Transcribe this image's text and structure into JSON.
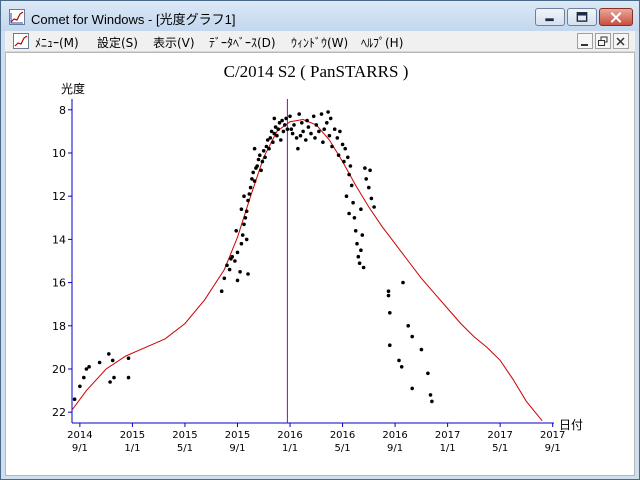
{
  "window": {
    "title": "Comet for Windows - [光度グラフ1]"
  },
  "menu": {
    "items": [
      "ﾒﾆｭｰ(M)",
      "設定(S)",
      "表示(V)",
      "ﾃﾞｰﾀﾍﾞｰｽ(D)",
      "ｳｨﾝﾄﾞｳ(W)",
      "ﾍﾙﾌﾟ(H)"
    ]
  },
  "icons": {
    "app": "comet-graph-icon",
    "minimize": "minimize-icon",
    "maximize": "maximize-icon",
    "close": "close-icon"
  },
  "colors": {
    "axis": "#0000cc",
    "prediction_curve": "#cc0000",
    "marker_line": "#9900cc",
    "points": "#000000"
  },
  "chart_data": {
    "type": "scatter",
    "title": "C/2014 S2 ( PanSTARRS )",
    "ylabel": "光度",
    "xlabel": "日付",
    "y_inverted": true,
    "ylim": [
      22.5,
      7.5
    ],
    "y_ticks": [
      8,
      10,
      12,
      14,
      16,
      18,
      20,
      22
    ],
    "x_ticks": [
      {
        "year": "2014",
        "date": "9/1"
      },
      {
        "year": "2015",
        "date": "1/1"
      },
      {
        "year": "2015",
        "date": "5/1"
      },
      {
        "year": "2015",
        "date": "9/1"
      },
      {
        "year": "2016",
        "date": "1/1"
      },
      {
        "year": "2016",
        "date": "5/1"
      },
      {
        "year": "2016",
        "date": "9/1"
      },
      {
        "year": "2017",
        "date": "1/1"
      },
      {
        "year": "2017",
        "date": "5/1"
      },
      {
        "year": "2017",
        "date": "9/1"
      }
    ],
    "x_unit": "months since 2014-09-01",
    "xlim": [
      -0.6,
      36.1
    ],
    "marker_line_x": 15.8,
    "curve": [
      [
        -0.6,
        21.9
      ],
      [
        0.5,
        21.0
      ],
      [
        2,
        20.0
      ],
      [
        3.5,
        19.4
      ],
      [
        5,
        19.0
      ],
      [
        6.5,
        18.6
      ],
      [
        8,
        17.9
      ],
      [
        9.5,
        16.8
      ],
      [
        11,
        15.4
      ],
      [
        12,
        13.9
      ],
      [
        13,
        12.0
      ],
      [
        14,
        10.2
      ],
      [
        15,
        9.0
      ],
      [
        16,
        8.55
      ],
      [
        17,
        8.45
      ],
      [
        18,
        8.7
      ],
      [
        19,
        9.4
      ],
      [
        20,
        10.4
      ],
      [
        21,
        11.5
      ],
      [
        22,
        12.5
      ],
      [
        23,
        13.4
      ],
      [
        24,
        14.2
      ],
      [
        25,
        15.0
      ],
      [
        26,
        15.8
      ],
      [
        27,
        16.5
      ],
      [
        28,
        17.2
      ],
      [
        29,
        17.9
      ],
      [
        30,
        18.5
      ],
      [
        31,
        19.0
      ],
      [
        32,
        19.6
      ],
      [
        33,
        20.5
      ],
      [
        34,
        21.5
      ],
      [
        35.2,
        22.4
      ]
    ],
    "points": [
      [
        -0.4,
        21.4
      ],
      [
        0,
        20.8
      ],
      [
        0.3,
        20.4
      ],
      [
        0.5,
        20.0
      ],
      [
        0.7,
        19.9
      ],
      [
        1.5,
        19.7
      ],
      [
        2.2,
        19.3
      ],
      [
        2.3,
        20.6
      ],
      [
        2.6,
        20.4
      ],
      [
        2.5,
        19.6
      ],
      [
        3.7,
        19.5
      ],
      [
        3.7,
        20.4
      ],
      [
        10.8,
        16.4
      ],
      [
        11,
        15.8
      ],
      [
        11.2,
        15.2
      ],
      [
        11.4,
        15.4
      ],
      [
        11.5,
        14.9
      ],
      [
        11.6,
        14.8
      ],
      [
        11.8,
        15.0
      ],
      [
        12,
        15.9
      ],
      [
        12.2,
        15.5
      ],
      [
        12,
        14.6
      ],
      [
        12.3,
        14.2
      ],
      [
        12.4,
        13.8
      ],
      [
        12.5,
        13.3
      ],
      [
        12.6,
        13.0
      ],
      [
        12.7,
        12.7
      ],
      [
        12.8,
        12.2
      ],
      [
        12.9,
        11.9
      ],
      [
        12.7,
        14.0
      ],
      [
        12.8,
        15.6
      ],
      [
        13.0,
        11.6
      ],
      [
        13.1,
        11.2
      ],
      [
        13.2,
        10.9
      ],
      [
        13.3,
        11.3
      ],
      [
        13.4,
        10.7
      ],
      [
        13.5,
        10.6
      ],
      [
        13.6,
        10.3
      ],
      [
        13.7,
        10.1
      ],
      [
        13.8,
        10.8
      ],
      [
        13.9,
        10.4
      ],
      [
        14.0,
        9.9
      ],
      [
        14.1,
        10.2
      ],
      [
        14.2,
        9.7
      ],
      [
        14.3,
        9.4
      ],
      [
        14.4,
        9.8
      ],
      [
        14.5,
        9.3
      ],
      [
        14.6,
        9.0
      ],
      [
        14.7,
        9.5
      ],
      [
        14.8,
        9.1
      ],
      [
        14.9,
        8.8
      ],
      [
        15.0,
        9.2
      ],
      [
        15.1,
        8.9
      ],
      [
        15.2,
        8.6
      ],
      [
        15.3,
        9.4
      ],
      [
        15.4,
        8.5
      ],
      [
        15.5,
        9.0
      ],
      [
        15.6,
        8.7
      ],
      [
        15.7,
        8.4
      ],
      [
        15.8,
        8.9
      ],
      [
        16.0,
        8.3
      ],
      [
        16.1,
        8.9
      ],
      [
        16.2,
        9.1
      ],
      [
        16.3,
        8.7
      ],
      [
        16.5,
        9.3
      ],
      [
        16.6,
        9.8
      ],
      [
        16.8,
        9.2
      ],
      [
        16.9,
        8.6
      ],
      [
        17.0,
        9.0
      ],
      [
        17.2,
        9.4
      ],
      [
        17.3,
        8.5
      ],
      [
        17.4,
        8.8
      ],
      [
        17.6,
        9.1
      ],
      [
        17.8,
        8.3
      ],
      [
        17.9,
        9.3
      ],
      [
        18.0,
        8.7
      ],
      [
        18.2,
        9.0
      ],
      [
        18.4,
        8.2
      ],
      [
        18.5,
        9.5
      ],
      [
        18.6,
        8.9
      ],
      [
        18.8,
        8.6
      ],
      [
        19.0,
        9.2
      ],
      [
        19.1,
        8.4
      ],
      [
        19.2,
        9.7
      ],
      [
        19.4,
        8.9
      ],
      [
        19.6,
        9.3
      ],
      [
        19.7,
        10.1
      ],
      [
        19.8,
        9.0
      ],
      [
        20.0,
        9.6
      ],
      [
        20.1,
        10.4
      ],
      [
        20.2,
        9.8
      ],
      [
        20.4,
        10.2
      ],
      [
        20.5,
        11.0
      ],
      [
        20.6,
        10.6
      ],
      [
        20.7,
        11.5
      ],
      [
        20.8,
        12.3
      ],
      [
        20.9,
        13.0
      ],
      [
        21.0,
        13.6
      ],
      [
        21.1,
        14.2
      ],
      [
        21.2,
        14.8
      ],
      [
        21.3,
        15.1
      ],
      [
        21.4,
        14.5
      ],
      [
        21.5,
        13.8
      ],
      [
        21.6,
        15.3
      ],
      [
        21.4,
        12.6
      ],
      [
        21.7,
        10.7
      ],
      [
        21.8,
        11.2
      ],
      [
        22.0,
        11.6
      ],
      [
        22.1,
        10.8
      ],
      [
        22.2,
        12.1
      ],
      [
        22.4,
        12.5
      ],
      [
        20.3,
        12.0
      ],
      [
        20.5,
        12.8
      ],
      [
        13.3,
        9.8
      ],
      [
        14.8,
        8.4
      ],
      [
        16.7,
        8.2
      ],
      [
        18.9,
        8.1
      ],
      [
        12.3,
        12.6
      ],
      [
        12.5,
        12.0
      ],
      [
        11.9,
        13.6
      ],
      [
        23.5,
        16.4
      ],
      [
        23.5,
        16.6
      ],
      [
        23.6,
        17.4
      ],
      [
        23.6,
        18.9
      ],
      [
        24.3,
        19.6
      ],
      [
        24.5,
        19.9
      ],
      [
        24.6,
        16.0
      ],
      [
        25.0,
        18.0
      ],
      [
        25.3,
        18.5
      ],
      [
        25.3,
        20.9
      ],
      [
        26.0,
        19.1
      ],
      [
        26.5,
        20.2
      ],
      [
        26.7,
        21.2
      ],
      [
        26.8,
        21.5
      ]
    ]
  }
}
